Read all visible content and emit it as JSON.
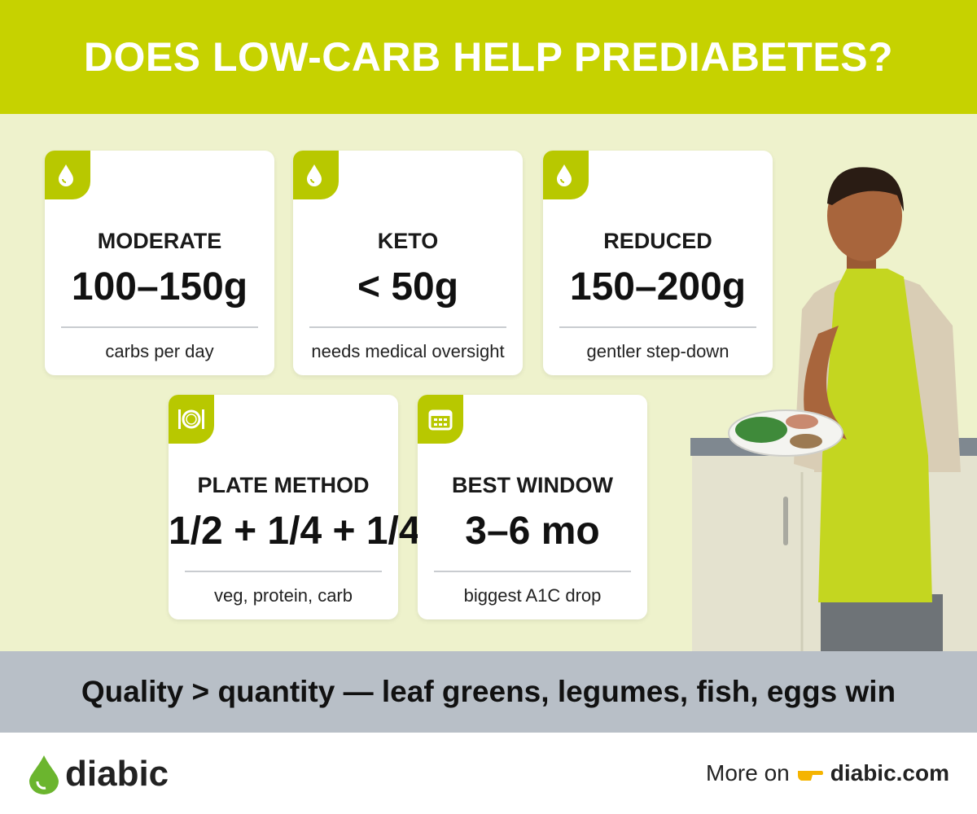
{
  "header": {
    "title": "DOES LOW-CARB HELP PREDIABETES?"
  },
  "cards": [
    {
      "label": "MODERATE",
      "value": "100–150g",
      "caption": "carbs per day"
    },
    {
      "label": "KETO",
      "value": "< 50g",
      "caption": "needs medical oversight"
    },
    {
      "label": "REDUCED",
      "value": "150–200g",
      "caption": "gentler step-down"
    },
    {
      "label": "PLATE METHOD",
      "value": "1/2 + 1/4 + 1/4",
      "caption": "veg, protein, carb"
    },
    {
      "label": "BEST WINDOW",
      "value": "3–6 mo",
      "caption": "biggest A1C drop"
    }
  ],
  "banner": {
    "text": "Quality > quantity — leaf greens, legumes, fish, eggs win"
  },
  "footer": {
    "brand": "diabic",
    "link_prefix": "More on",
    "link": "diabic.com"
  }
}
